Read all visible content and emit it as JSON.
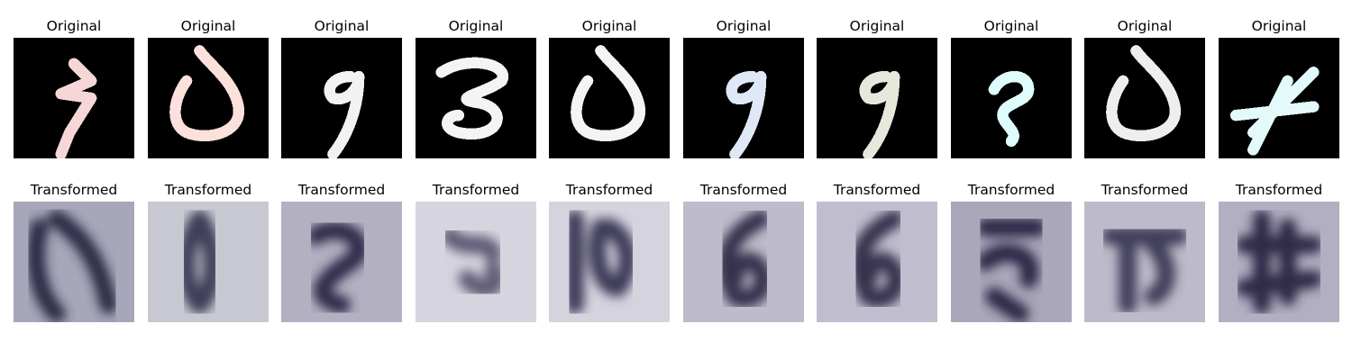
{
  "rows": [
    {
      "title": "Original",
      "panels": [
        {
          "digit": "7",
          "tint": "#f6d6d6",
          "bg": "#000000"
        },
        {
          "digit": "0",
          "tint": "#fbe0dc",
          "bg": "#000000"
        },
        {
          "digit": "9",
          "tint": "#f2f2f2",
          "bg": "#000000"
        },
        {
          "digit": "3",
          "tint": "#f4f4f4",
          "bg": "#000000"
        },
        {
          "digit": "0",
          "tint": "#f4f4f4",
          "bg": "#000000"
        },
        {
          "digit": "9",
          "tint": "#dfe8f6",
          "bg": "#000000"
        },
        {
          "digit": "9",
          "tint": "#e6e8dc",
          "bg": "#000000"
        },
        {
          "digit": "2",
          "tint": "#dffcfc",
          "bg": "#000000"
        },
        {
          "digit": "0",
          "tint": "#eeeeee",
          "bg": "#000000"
        },
        {
          "digit": "4",
          "tint": "#e4fafa",
          "bg": "#000000"
        }
      ]
    },
    {
      "title": "Transformed",
      "panels": [
        {
          "digit": "",
          "tint": "#2c2b45",
          "bg": "#a8a6ba"
        },
        {
          "digit": "",
          "tint": "#3e3e58",
          "bg": "#c8c8d2"
        },
        {
          "digit": "",
          "tint": "#2f2c48",
          "bg": "#b3b0c2"
        },
        {
          "digit": "",
          "tint": "#5e5b76",
          "bg": "#d6d4de"
        },
        {
          "digit": "",
          "tint": "#3d3b58",
          "bg": "#d5d4de"
        },
        {
          "digit": "",
          "tint": "#34304e",
          "bg": "#bebcca"
        },
        {
          "digit": "",
          "tint": "#34304e",
          "bg": "#c0bece"
        },
        {
          "digit": "",
          "tint": "#2b2844",
          "bg": "#aaa7ba"
        },
        {
          "digit": "",
          "tint": "#3f3c5a",
          "bg": "#bdbbca"
        },
        {
          "digit": "",
          "tint": "#2e2b47",
          "bg": "#b2afc2"
        }
      ]
    }
  ]
}
